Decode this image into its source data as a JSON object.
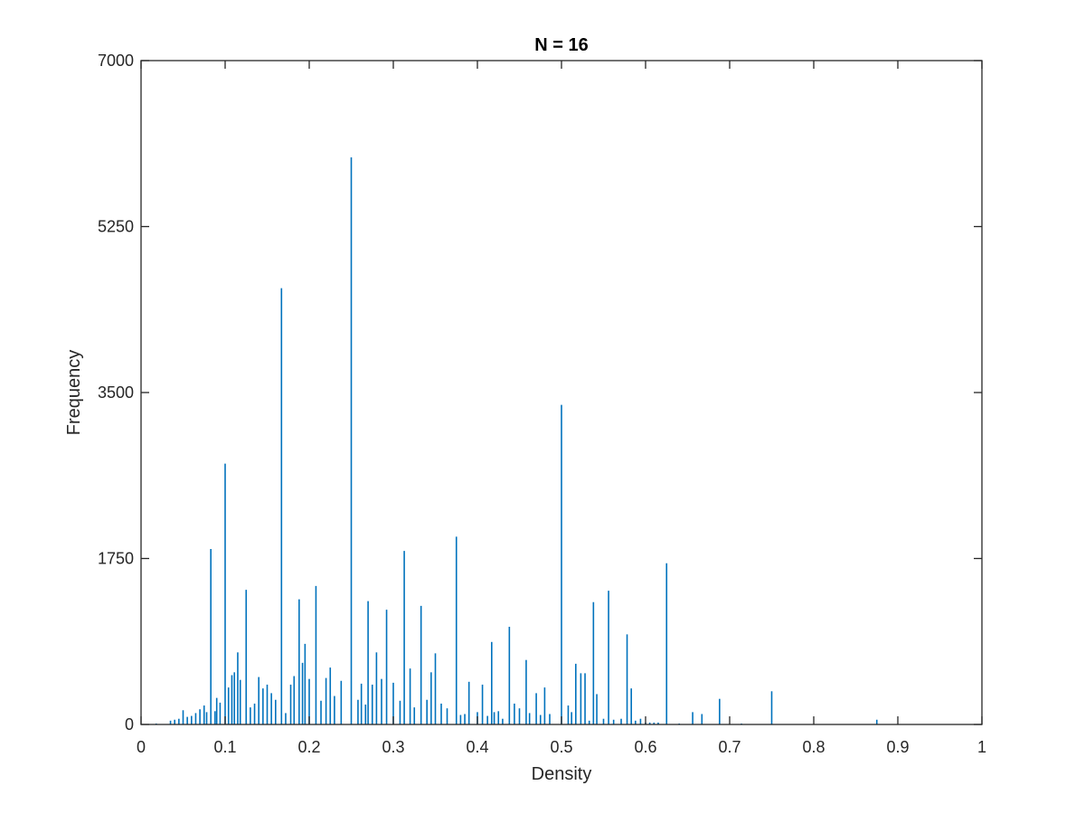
{
  "chart_data": {
    "type": "bar",
    "title": "N = 16",
    "xlabel": "Density",
    "ylabel": "Frequency",
    "xlim": [
      0,
      1
    ],
    "ylim": [
      0,
      7000
    ],
    "xticks": [
      "0",
      "0.1",
      "0.2",
      "0.3",
      "0.4",
      "0.5",
      "0.6",
      "0.7",
      "0.8",
      "0.9",
      "1"
    ],
    "yticks": [
      "0",
      "1750",
      "3500",
      "5250",
      "7000"
    ],
    "grid": false,
    "legend": "none",
    "color": "#0072BD",
    "x": [
      0.018,
      0.035,
      0.04,
      0.045,
      0.05,
      0.055,
      0.06,
      0.065,
      0.07,
      0.075,
      0.078,
      0.083,
      0.088,
      0.09,
      0.094,
      0.1,
      0.104,
      0.108,
      0.111,
      0.115,
      0.118,
      0.125,
      0.13,
      0.135,
      0.14,
      0.145,
      0.15,
      0.155,
      0.16,
      0.167,
      0.172,
      0.178,
      0.182,
      0.188,
      0.192,
      0.195,
      0.2,
      0.208,
      0.214,
      0.22,
      0.225,
      0.23,
      0.238,
      0.25,
      0.258,
      0.262,
      0.267,
      0.27,
      0.275,
      0.28,
      0.286,
      0.292,
      0.3,
      0.308,
      0.313,
      0.32,
      0.325,
      0.333,
      0.34,
      0.345,
      0.35,
      0.357,
      0.364,
      0.375,
      0.38,
      0.385,
      0.39,
      0.4,
      0.406,
      0.412,
      0.417,
      0.42,
      0.425,
      0.43,
      0.438,
      0.444,
      0.45,
      0.458,
      0.462,
      0.47,
      0.475,
      0.48,
      0.486,
      0.5,
      0.508,
      0.512,
      0.517,
      0.523,
      0.528,
      0.533,
      0.538,
      0.542,
      0.55,
      0.556,
      0.562,
      0.571,
      0.578,
      0.583,
      0.588,
      0.594,
      0.6,
      0.605,
      0.61,
      0.615,
      0.625,
      0.64,
      0.656,
      0.667,
      0.688,
      0.714,
      0.75,
      0.875
    ],
    "values": [
      10,
      40,
      50,
      60,
      150,
      80,
      90,
      120,
      160,
      200,
      130,
      1850,
      140,
      280,
      230,
      2750,
      390,
      520,
      550,
      760,
      470,
      1420,
      180,
      220,
      500,
      380,
      420,
      330,
      260,
      4600,
      120,
      420,
      510,
      1320,
      650,
      850,
      480,
      1460,
      250,
      490,
      600,
      300,
      460,
      5980,
      260,
      430,
      210,
      1300,
      420,
      760,
      480,
      1210,
      440,
      250,
      1830,
      590,
      180,
      1250,
      260,
      550,
      750,
      220,
      170,
      1980,
      100,
      110,
      450,
      130,
      420,
      90,
      870,
      130,
      140,
      60,
      1030,
      220,
      170,
      680,
      120,
      330,
      100,
      390,
      110,
      3370,
      200,
      130,
      640,
      540,
      540,
      40,
      1290,
      320,
      60,
      1410,
      50,
      60,
      950,
      380,
      40,
      60,
      20,
      20,
      20,
      20,
      1700,
      10,
      130,
      110,
      270,
      10,
      350,
      50
    ]
  }
}
